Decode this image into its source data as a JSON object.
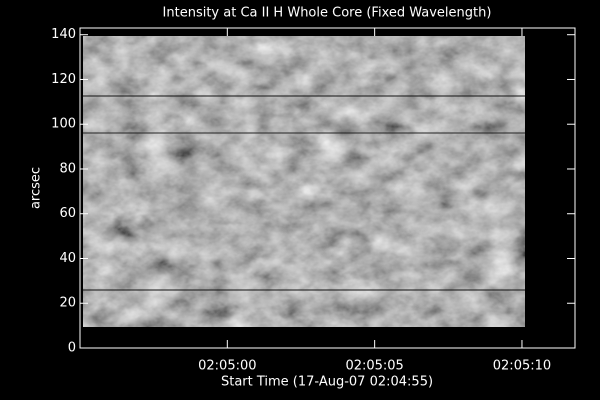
{
  "chart_data": {
    "type": "image",
    "title": "Intensity at Ca II H Whole Core (Fixed Wavelength)",
    "x_label": "Start Time (17-Aug-07 02:04:55)",
    "y_label": "arcsec",
    "xlim": [
      0,
      16.8
    ],
    "xticks": [
      {
        "value": 5,
        "label": "02:05:00"
      },
      {
        "value": 10,
        "label": "02:05:05"
      },
      {
        "value": 15,
        "label": "02:05:10"
      }
    ],
    "ylim": [
      0,
      143
    ],
    "yticks": [
      0,
      20,
      40,
      60,
      80,
      100,
      120,
      140
    ]
  }
}
